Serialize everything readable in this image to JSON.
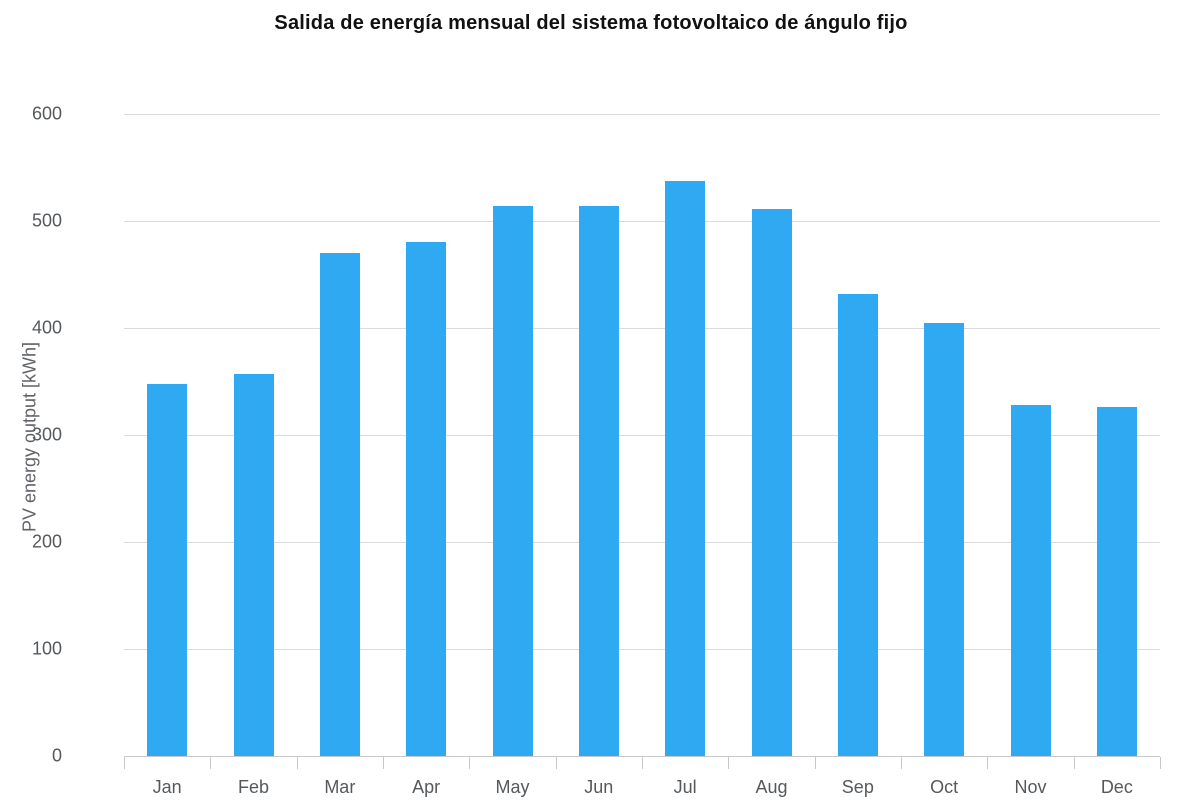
{
  "chart_data": {
    "type": "bar",
    "title": "Salida de energía mensual del sistema fotovoltaico de ángulo fijo",
    "categories": [
      "Jan",
      "Feb",
      "Mar",
      "Apr",
      "May",
      "Jun",
      "Jul",
      "Aug",
      "Sep",
      "Oct",
      "Nov",
      "Dec"
    ],
    "values": [
      348,
      357,
      470,
      480,
      514,
      514,
      537,
      511,
      432,
      405,
      328,
      326
    ],
    "xlabel": "",
    "ylabel": "PV energy output [kWh]",
    "ylim": [
      0,
      600
    ],
    "ytick_interval": 100,
    "yticks": [
      0,
      100,
      200,
      300,
      400,
      500,
      600
    ],
    "grid": true,
    "legend": false,
    "bar_color": "#2fa9f2",
    "gridline_color": "#dbdbdb",
    "axis_line_color": "#c9c9c9",
    "tick_label_color": "#56595c",
    "title_color": "#111111",
    "background_color": "#ffffff"
  }
}
